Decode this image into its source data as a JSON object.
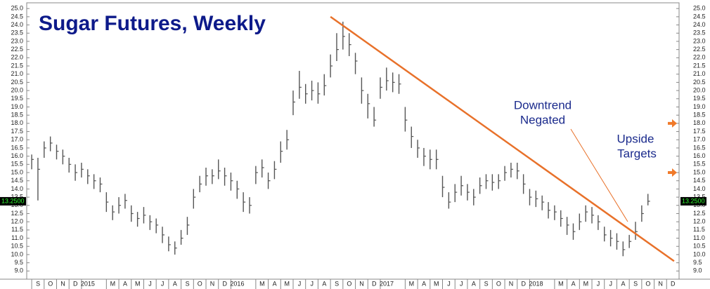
{
  "chart_data": {
    "type": "hlc",
    "title": "Sugar Futures, Weekly",
    "color": "#555555",
    "xlim": [
      -0.4,
      52.0
    ],
    "ylim": [
      8.5,
      25.35
    ],
    "yticks": [
      {
        "value": 9,
        "label": "9.0"
      },
      {
        "value": 9.5,
        "label": "9.5"
      },
      {
        "value": 10,
        "label": "10.0"
      },
      {
        "value": 10.5,
        "label": "10.5"
      },
      {
        "value": 11,
        "label": "11.0"
      },
      {
        "value": 11.5,
        "label": "11.5"
      },
      {
        "value": 12,
        "label": "12.0"
      },
      {
        "value": 12.5,
        "label": "12.5"
      },
      {
        "value": 13,
        "label": "13.0"
      },
      {
        "value": 13.5,
        "label": "13.5"
      },
      {
        "value": 14,
        "label": "14.0"
      },
      {
        "value": 14.5,
        "label": "14.5"
      },
      {
        "value": 15,
        "label": "15.0"
      },
      {
        "value": 15.5,
        "label": "15.5"
      },
      {
        "value": 16,
        "label": "16.0"
      },
      {
        "value": 16.5,
        "label": "16.5"
      },
      {
        "value": 17,
        "label": "17.0"
      },
      {
        "value": 17.5,
        "label": "17.5"
      },
      {
        "value": 18,
        "label": "18.0"
      },
      {
        "value": 18.5,
        "label": "18.5"
      },
      {
        "value": 19,
        "label": "19.0"
      },
      {
        "value": 19.5,
        "label": "19.5"
      },
      {
        "value": 20,
        "label": "20.0"
      },
      {
        "value": 20.5,
        "label": "20.5"
      },
      {
        "value": 21,
        "label": "21.0"
      },
      {
        "value": 21.5,
        "label": "21.5"
      },
      {
        "value": 22,
        "label": "22.0"
      },
      {
        "value": 22.5,
        "label": "22.5"
      },
      {
        "value": 23,
        "label": "23.0"
      },
      {
        "value": 23.5,
        "label": "23.5"
      },
      {
        "value": 24,
        "label": "24.0"
      },
      {
        "value": 24.5,
        "label": "24.5"
      },
      {
        "value": 25,
        "label": "25.0"
      }
    ],
    "xticks": [
      {
        "value": 0,
        "label": "S"
      },
      {
        "value": 1,
        "label": "O"
      },
      {
        "value": 2,
        "label": "N"
      },
      {
        "value": 3,
        "label": "D"
      },
      {
        "value": 4,
        "label": "2015"
      },
      {
        "value": 6,
        "label": "M"
      },
      {
        "value": 7,
        "label": "A"
      },
      {
        "value": 8,
        "label": "M"
      },
      {
        "value": 9,
        "label": "J"
      },
      {
        "value": 10,
        "label": "J"
      },
      {
        "value": 11,
        "label": "A"
      },
      {
        "value": 12,
        "label": "S"
      },
      {
        "value": 13,
        "label": "O"
      },
      {
        "value": 14,
        "label": "N"
      },
      {
        "value": 15,
        "label": "D"
      },
      {
        "value": 16,
        "label": "2016"
      },
      {
        "value": 18,
        "label": "M"
      },
      {
        "value": 19,
        "label": "A"
      },
      {
        "value": 20,
        "label": "M"
      },
      {
        "value": 21,
        "label": "J"
      },
      {
        "value": 22,
        "label": "J"
      },
      {
        "value": 23,
        "label": "A"
      },
      {
        "value": 24,
        "label": "S"
      },
      {
        "value": 25,
        "label": "O"
      },
      {
        "value": 26,
        "label": "N"
      },
      {
        "value": 27,
        "label": "D"
      },
      {
        "value": 28,
        "label": "2017"
      },
      {
        "value": 30,
        "label": "M"
      },
      {
        "value": 31,
        "label": "A"
      },
      {
        "value": 32,
        "label": "M"
      },
      {
        "value": 33,
        "label": "J"
      },
      {
        "value": 34,
        "label": "J"
      },
      {
        "value": 35,
        "label": "A"
      },
      {
        "value": 36,
        "label": "S"
      },
      {
        "value": 37,
        "label": "O"
      },
      {
        "value": 38,
        "label": "N"
      },
      {
        "value": 39,
        "label": "D"
      },
      {
        "value": 40,
        "label": "2018"
      },
      {
        "value": 42,
        "label": "M"
      },
      {
        "value": 43,
        "label": "A"
      },
      {
        "value": 44,
        "label": "M"
      },
      {
        "value": 45,
        "label": "J"
      },
      {
        "value": 46,
        "label": "J"
      },
      {
        "value": 47,
        "label": "A"
      },
      {
        "value": 48,
        "label": "S"
      },
      {
        "value": 49,
        "label": "O"
      },
      {
        "value": 50,
        "label": "N"
      },
      {
        "value": 51,
        "label": "D"
      }
    ],
    "x": [
      0,
      0.5,
      1,
      1.5,
      2,
      2.5,
      3,
      3.5,
      4,
      4.5,
      5,
      5.5,
      6,
      6.5,
      7,
      7.5,
      8,
      8.5,
      9,
      9.5,
      10,
      10.5,
      11,
      11.5,
      12,
      12.5,
      13,
      13.5,
      14,
      14.5,
      15,
      15.5,
      16,
      16.5,
      17,
      17.5,
      18,
      18.5,
      19,
      19.5,
      20,
      20.5,
      21,
      21.5,
      22,
      22.5,
      23,
      23.5,
      24,
      24.5,
      25,
      25.5,
      26,
      26.5,
      27,
      27.5,
      28,
      28.5,
      29,
      29.5,
      30,
      30.5,
      31,
      31.5,
      32,
      32.5,
      33,
      33.5,
      34,
      34.5,
      35,
      35.5,
      36,
      36.5,
      37,
      37.5,
      38,
      38.5,
      39,
      39.5,
      40,
      40.5,
      41,
      41.5,
      42,
      42.5,
      43,
      43.5,
      44,
      44.5,
      45,
      45.5,
      46,
      46.5,
      47,
      47.5,
      48,
      48.5,
      49,
      49.5
    ],
    "high": [
      16.1,
      15.9,
      16.9,
      17.2,
      16.7,
      16.4,
      15.9,
      15.5,
      15.6,
      15.2,
      14.9,
      14.7,
      13.8,
      13.0,
      13.5,
      13.7,
      13.0,
      12.6,
      12.9,
      12.4,
      12.2,
      11.7,
      11.1,
      10.8,
      11.5,
      12.3,
      14.0,
      14.8,
      15.3,
      15.2,
      15.8,
      15.3,
      15.0,
      14.5,
      13.8,
      13.5,
      15.4,
      15.8,
      15.0,
      15.7,
      16.9,
      17.6,
      20.0,
      21.2,
      20.4,
      20.6,
      20.5,
      21.0,
      22.2,
      23.5,
      24.2,
      23.5,
      22.3,
      20.8,
      19.8,
      19.0,
      20.8,
      21.4,
      21.1,
      21.0,
      19.0,
      17.8,
      17.0,
      16.5,
      16.4,
      16.4,
      14.8,
      13.8,
      14.3,
      14.8,
      14.3,
      14.0,
      14.7,
      14.9,
      14.9,
      14.9,
      15.4,
      15.6,
      15.6,
      14.9,
      14.0,
      13.9,
      13.6,
      13.2,
      13.0,
      12.7,
      12.3,
      11.9,
      12.5,
      13.0,
      12.9,
      12.4,
      11.7,
      11.5,
      11.3,
      10.8,
      11.2,
      12.0,
      13.0,
      13.7
    ],
    "low": [
      15.2,
      13.3,
      15.9,
      16.3,
      15.8,
      15.5,
      15.0,
      14.5,
      14.7,
      14.3,
      14.0,
      13.8,
      12.6,
      12.1,
      12.5,
      12.8,
      12.0,
      11.7,
      11.9,
      11.5,
      11.3,
      10.7,
      10.2,
      10.0,
      10.6,
      11.2,
      12.8,
      13.8,
      14.2,
      14.3,
      14.6,
      14.2,
      13.9,
      13.4,
      12.6,
      12.5,
      14.3,
      14.7,
      14.0,
      14.6,
      15.6,
      16.4,
      18.5,
      19.5,
      19.2,
      19.4,
      19.2,
      19.7,
      20.8,
      21.8,
      22.5,
      22.1,
      21.0,
      19.2,
      18.3,
      17.8,
      19.5,
      20.0,
      19.9,
      19.8,
      17.5,
      16.5,
      15.9,
      15.4,
      15.2,
      15.2,
      13.5,
      12.8,
      13.2,
      13.6,
      13.3,
      13.0,
      13.7,
      14.0,
      13.9,
      14.0,
      14.5,
      14.7,
      14.6,
      13.7,
      13.0,
      12.9,
      12.7,
      12.2,
      12.1,
      11.7,
      11.2,
      10.9,
      11.5,
      12.0,
      11.9,
      11.5,
      10.8,
      10.5,
      10.3,
      9.9,
      10.4,
      10.9,
      12.0,
      13.0
    ],
    "close": [
      15.8,
      15.2,
      16.5,
      16.8,
      16.3,
      16.0,
      15.5,
      15.0,
      15.2,
      14.8,
      14.5,
      14.3,
      13.2,
      12.6,
      13.0,
      13.3,
      12.5,
      12.2,
      12.4,
      12.0,
      11.8,
      11.2,
      10.6,
      10.4,
      11.0,
      11.8,
      13.5,
      14.3,
      14.8,
      14.8,
      15.1,
      14.8,
      14.5,
      14.0,
      13.2,
      13.0,
      15.0,
      15.3,
      14.5,
      15.2,
      16.3,
      17.0,
      19.3,
      20.2,
      19.8,
      20.0,
      19.8,
      20.3,
      21.5,
      22.5,
      23.3,
      22.8,
      21.8,
      20.0,
      19.2,
      18.2,
      20.2,
      20.6,
      20.5,
      20.4,
      18.2,
      17.2,
      16.5,
      16.0,
      15.8,
      15.8,
      14.1,
      13.2,
      13.8,
      14.2,
      13.8,
      13.5,
      14.2,
      14.5,
      14.4,
      14.5,
      15.0,
      15.2,
      15.1,
      14.3,
      13.5,
      13.4,
      13.2,
      12.7,
      12.6,
      12.2,
      11.8,
      11.4,
      12.0,
      12.6,
      12.4,
      12.0,
      11.2,
      11.0,
      10.8,
      10.3,
      10.8,
      11.4,
      12.5,
      13.25
    ],
    "trendline": {
      "x": [
        24.0,
        51.6
      ],
      "y": [
        24.5,
        9.6
      ],
      "color": "#e8712a"
    },
    "targets": [
      18,
      15
    ],
    "target_color": "#f07a2a",
    "last_price": {
      "value": 13.25,
      "label": "13.2500"
    },
    "annotations": [
      "Downtrend",
      "Negated",
      "Upside",
      "Targets"
    ]
  }
}
